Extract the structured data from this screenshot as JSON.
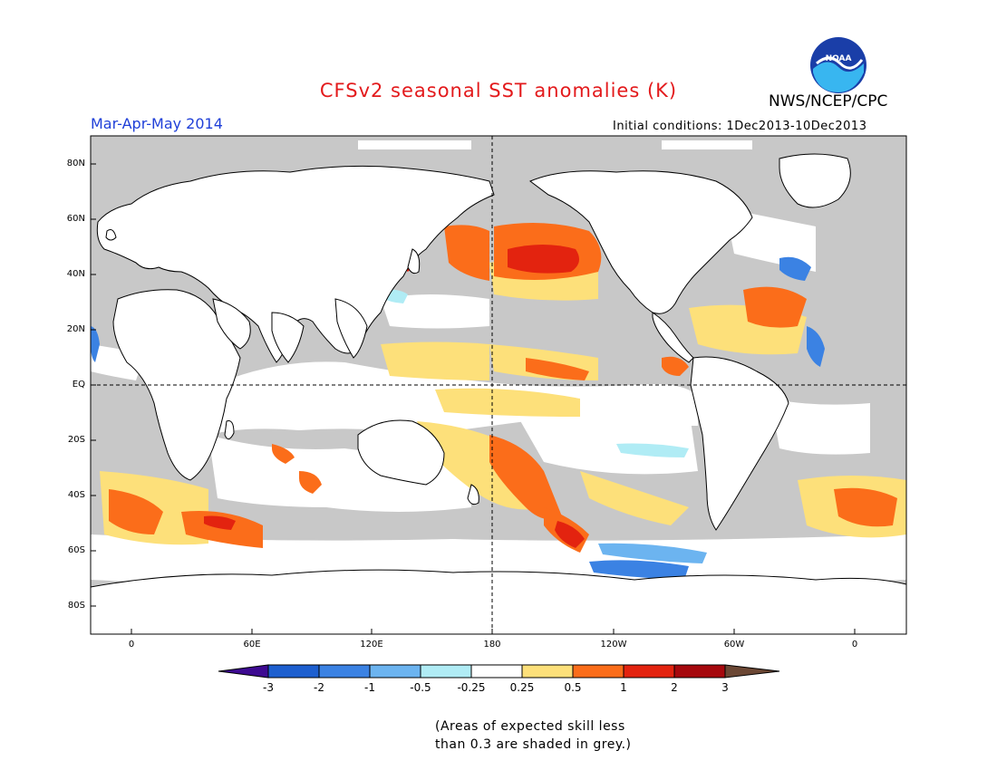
{
  "header": {
    "title": "CFSv2 seasonal SST anomalies (K)",
    "agency": "NWS/NCEP/CPC",
    "season": "Mar-Apr-May 2014",
    "initial_conditions": "Initial conditions: 1Dec2013-10Dec2013",
    "logo_text": "NOAA"
  },
  "map": {
    "lat_labels": [
      "80N",
      "60N",
      "40N",
      "20N",
      "EQ",
      "20S",
      "40S",
      "60S",
      "80S"
    ],
    "lon_labels": [
      "0",
      "60E",
      "120E",
      "180",
      "120W",
      "60W",
      "0"
    ]
  },
  "colorbar": {
    "labels": [
      "-3",
      "-2",
      "-1",
      "-0.5",
      "-0.25",
      "0.25",
      "0.5",
      "1",
      "2",
      "3"
    ],
    "colors": [
      "#3d0a91",
      "#1d5fcf",
      "#3b82e3",
      "#6cb4f0",
      "#b0ecf5",
      "#ffffff",
      "#fde07a",
      "#fb6d1a",
      "#e3230f",
      "#a6080d",
      "#6b4734"
    ]
  },
  "legend_note": {
    "line1": "(Areas of expected skill less",
    "line2": "than 0.3 are shaded in grey.)"
  },
  "colors": {
    "skill_grey": "#c8c8c8",
    "title_red": "#e31a1c",
    "season_blue": "#1f3fd8"
  }
}
